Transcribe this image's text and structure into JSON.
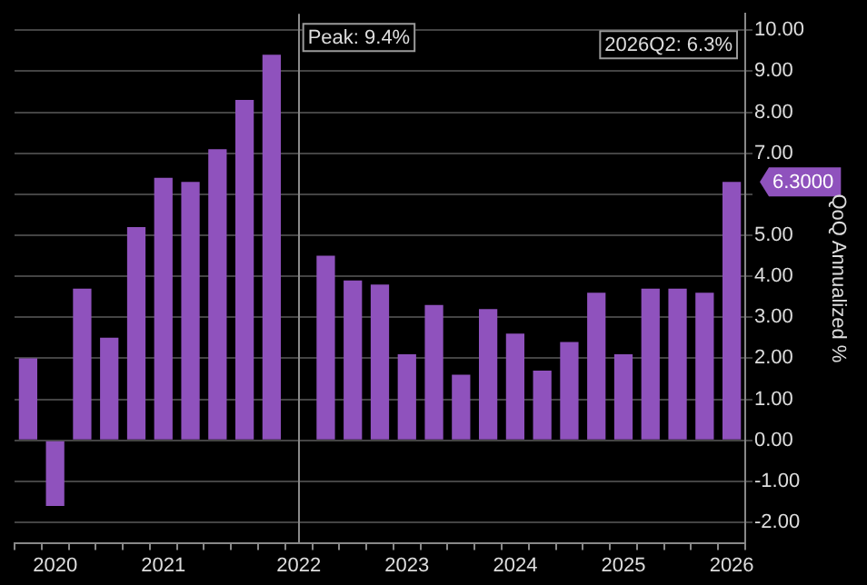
{
  "chart_data": {
    "type": "bar",
    "ylabel": "QoQ Annualized %",
    "categories": [
      null,
      "2020",
      null,
      null,
      null,
      "2021",
      null,
      null,
      null,
      null,
      "2022",
      null,
      null,
      null,
      "2023",
      null,
      null,
      null,
      "2024",
      null,
      null,
      null,
      "2025",
      null,
      null,
      null,
      "2026"
    ],
    "values": [
      2.0,
      -1.6,
      3.7,
      2.5,
      5.2,
      6.4,
      6.3,
      7.1,
      8.3,
      9.4,
      null,
      4.5,
      3.9,
      3.8,
      2.1,
      3.3,
      1.6,
      3.2,
      2.6,
      1.7,
      2.4,
      3.6,
      2.1,
      3.7,
      3.7,
      3.6,
      6.3
    ],
    "color": "#8f52bd",
    "ylim": [
      -2.5,
      10.4
    ],
    "yticks": [
      {
        "value": -2,
        "label": "-2.00"
      },
      {
        "value": -1,
        "label": "-1.00"
      },
      {
        "value": 0,
        "label": "0.00"
      },
      {
        "value": 1,
        "label": "1.00"
      },
      {
        "value": 2,
        "label": "2.00"
      },
      {
        "value": 3,
        "label": "3.00"
      },
      {
        "value": 4,
        "label": "4.00"
      },
      {
        "value": 5,
        "label": "5.00"
      },
      {
        "value": 6,
        "label": null
      },
      {
        "value": 7,
        "label": "7.00"
      },
      {
        "value": 8,
        "label": "8.00"
      },
      {
        "value": 9,
        "label": "9.00"
      },
      {
        "value": 10,
        "label": "10.00"
      }
    ],
    "grid": "y",
    "ref_lines": [
      {
        "axis": "x",
        "value": "2022",
        "color": "#8a8a8a"
      }
    ],
    "annotations": [
      "Peak: 9.4%",
      "2026Q2: 6.3%",
      "6.3000"
    ]
  }
}
